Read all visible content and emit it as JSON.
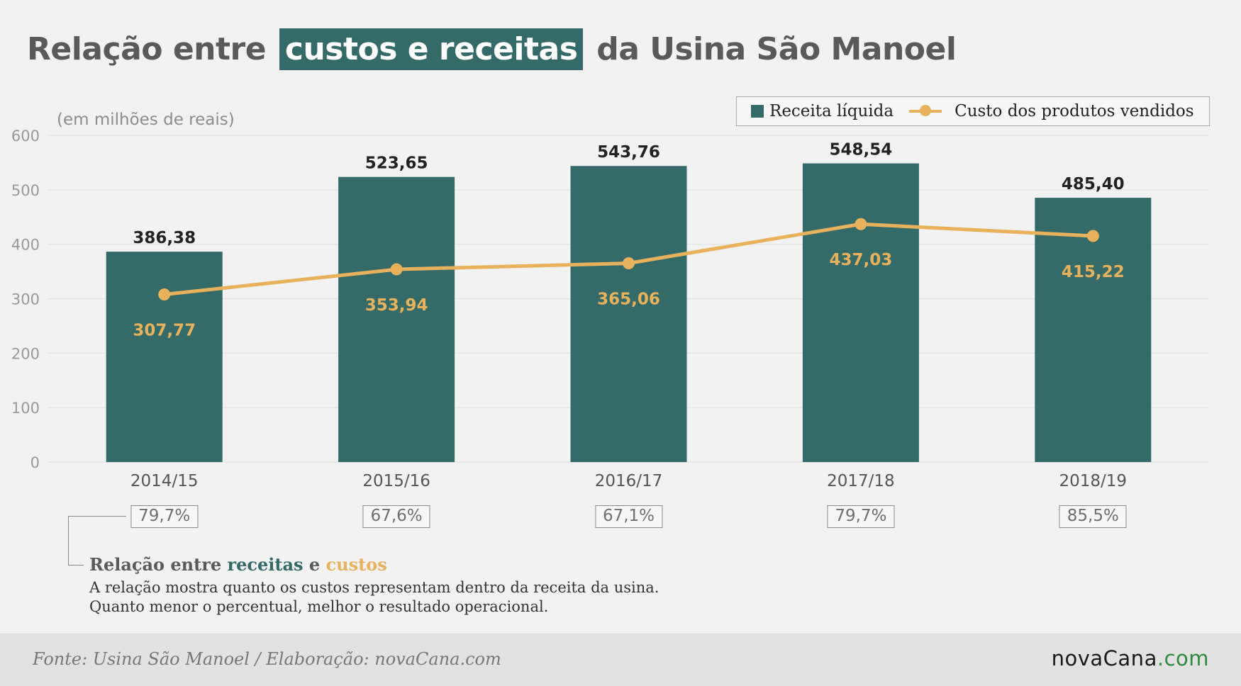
{
  "title": {
    "prefix": "Relação entre",
    "highlight": "custos e receitas",
    "suffix": "da Usina São Manoel"
  },
  "unit_label": "(em milhões de reais)",
  "legend": {
    "bar_label": "Receita líquida",
    "line_label": "Custo dos produtos vendidos"
  },
  "colors": {
    "bar": "#346b68",
    "line": "#e8b15c",
    "grid": "#e3e3e3",
    "tick": "#999999"
  },
  "chart_data": {
    "type": "bar",
    "categories": [
      "2014/15",
      "2015/16",
      "2016/17",
      "2017/18",
      "2018/19"
    ],
    "series": [
      {
        "name": "Receita líquida",
        "type": "bar",
        "values": [
          386.38,
          523.65,
          543.76,
          548.54,
          485.4
        ],
        "labels": [
          "386,38",
          "523,65",
          "543,76",
          "548,54",
          "485,40"
        ]
      },
      {
        "name": "Custo dos produtos vendidos",
        "type": "line",
        "values": [
          307.77,
          353.94,
          365.06,
          437.03,
          415.22
        ],
        "labels": [
          "307,77",
          "353,94",
          "365,06",
          "437,03",
          "415,22"
        ]
      }
    ],
    "ylim": [
      0,
      600
    ],
    "yticks": [
      0,
      100,
      200,
      300,
      400,
      500,
      600
    ],
    "grid": true,
    "legend_position": "top-right",
    "ratios": [
      "79,7%",
      "67,6%",
      "67,1%",
      "79,7%",
      "85,5%"
    ]
  },
  "note": {
    "title_prefix": "Relação entre",
    "title_receitas": "receitas",
    "title_e": "e",
    "title_custos": "custos",
    "line1": "A relação mostra quanto os custos representam dentro da receita da usina.",
    "line2": "Quanto menor o percentual, melhor o resultado operacional."
  },
  "footer": {
    "source": "Fonte: Usina São Manoel / Elaboração: novaCana.com",
    "brand_main": "novaCana",
    "brand_dot": ".",
    "brand_com": "com"
  }
}
